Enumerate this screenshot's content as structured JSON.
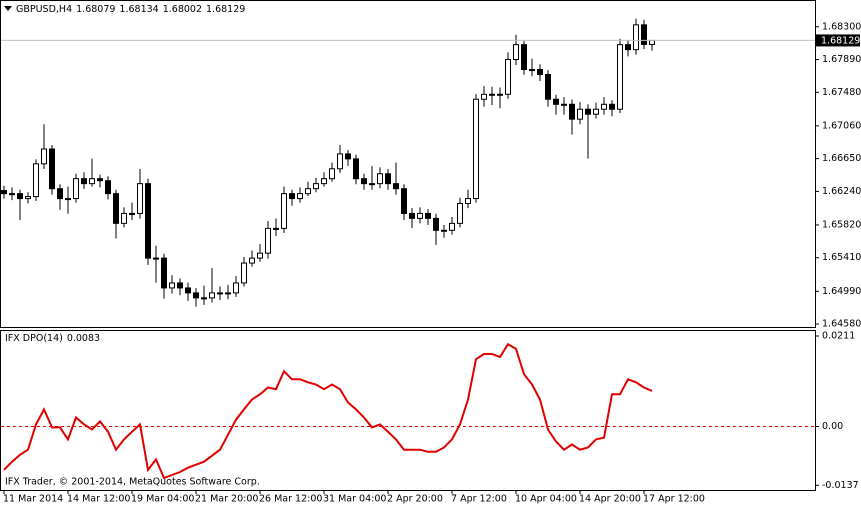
{
  "chart_data": [
    {
      "type": "candlestick",
      "title": "GBPUSD,H4",
      "color": "#000000",
      "bull_fill": "#ffffff",
      "ylim": [
        1.64543,
        1.68635
      ],
      "yticks": [
        {
          "value": 1.683,
          "label": "1.68300"
        },
        {
          "value": 1.6789,
          "label": "1.67890"
        },
        {
          "value": 1.6748,
          "label": "1.67480"
        },
        {
          "value": 1.6706,
          "label": "1.67060"
        },
        {
          "value": 1.6665,
          "label": "1.66650"
        },
        {
          "value": 1.6624,
          "label": "1.66240"
        },
        {
          "value": 1.6582,
          "label": "1.65820"
        },
        {
          "value": 1.6541,
          "label": "1.65410"
        },
        {
          "value": 1.6499,
          "label": "1.64990"
        },
        {
          "value": 1.6458,
          "label": "1.64580"
        }
      ],
      "last_price": 1.68129,
      "categories": [
        "11 Mar 2014",
        null,
        null,
        null,
        null,
        null,
        null,
        null,
        "14 Mar 12:00",
        null,
        null,
        null,
        null,
        null,
        null,
        null,
        "19 Mar 04:00",
        null,
        null,
        null,
        null,
        null,
        null,
        null,
        "21 Mar 20:00",
        null,
        null,
        null,
        null,
        null,
        null,
        null,
        "26 Mar 12:00",
        null,
        null,
        null,
        null,
        null,
        null,
        null,
        "31 Mar 04:00",
        null,
        null,
        null,
        null,
        null,
        null,
        null,
        "2 Apr 20:00",
        null,
        null,
        null,
        null,
        null,
        null,
        null,
        "7 Apr 12:00",
        null,
        null,
        null,
        null,
        null,
        null,
        null,
        "10 Apr 04:00",
        null,
        null,
        null,
        null,
        null,
        null,
        null,
        "14 Apr 20:00",
        null,
        null,
        null,
        null,
        null,
        null,
        null,
        "17 Apr 12:00",
        null
      ],
      "ohlc": [
        [
          1.6625,
          1.6631,
          1.6615,
          1.66212
        ],
        [
          1.66212,
          1.6629,
          1.6613,
          1.66212
        ],
        [
          1.66212,
          1.6626,
          1.6588,
          1.6615
        ],
        [
          1.6615,
          1.6623,
          1.6609,
          1.66175
        ],
        [
          1.66175,
          1.6664,
          1.6612,
          1.66585
        ],
        [
          1.66585,
          1.6708,
          1.6652,
          1.66771
        ],
        [
          1.66771,
          1.6682,
          1.662,
          1.66274
        ],
        [
          1.66274,
          1.6633,
          1.6601,
          1.6615
        ],
        [
          1.6615,
          1.663,
          1.6596,
          1.6615
        ],
        [
          1.6615,
          1.6646,
          1.661,
          1.66399
        ],
        [
          1.66399,
          1.6648,
          1.6627,
          1.66337
        ],
        [
          1.66337,
          1.6665,
          1.663,
          1.66399
        ],
        [
          1.66399,
          1.6645,
          1.6629,
          1.66374
        ],
        [
          1.66374,
          1.6643,
          1.6614,
          1.66212
        ],
        [
          1.66212,
          1.6626,
          1.6565,
          1.6584
        ],
        [
          1.6584,
          1.6604,
          1.6579,
          1.65964
        ],
        [
          1.65964,
          1.661,
          1.6588,
          1.65964
        ],
        [
          1.65964,
          1.6652,
          1.659,
          1.66337
        ],
        [
          1.66337,
          1.664,
          1.6532,
          1.65405
        ],
        [
          1.65405,
          1.6556,
          1.651,
          1.65405
        ],
        [
          1.65405,
          1.6546,
          1.649,
          1.65032
        ],
        [
          1.65032,
          1.6519,
          1.6496,
          1.65094
        ],
        [
          1.65094,
          1.6515,
          1.6494,
          1.65032
        ],
        [
          1.65032,
          1.651,
          1.6487,
          1.6497
        ],
        [
          1.6497,
          1.6503,
          1.648,
          1.64908
        ],
        [
          1.64908,
          1.6506,
          1.6482,
          1.64908
        ],
        [
          1.64908,
          1.6528,
          1.6485,
          1.6497
        ],
        [
          1.6497,
          1.6505,
          1.6488,
          1.6497
        ],
        [
          1.6497,
          1.6507,
          1.6489,
          1.6497
        ],
        [
          1.6497,
          1.6518,
          1.6492,
          1.65094
        ],
        [
          1.65094,
          1.6542,
          1.6505,
          1.65343
        ],
        [
          1.65343,
          1.655,
          1.653,
          1.65405
        ],
        [
          1.65405,
          1.6558,
          1.6536,
          1.65467
        ],
        [
          1.65467,
          1.6587,
          1.654,
          1.65777
        ],
        [
          1.65777,
          1.659,
          1.6568,
          1.65777
        ],
        [
          1.65777,
          1.663,
          1.6572,
          1.66212
        ],
        [
          1.66212,
          1.6626,
          1.6606,
          1.6615
        ],
        [
          1.6615,
          1.6629,
          1.661,
          1.66212
        ],
        [
          1.66212,
          1.6636,
          1.6618,
          1.66274
        ],
        [
          1.66274,
          1.6641,
          1.6623,
          1.66337
        ],
        [
          1.66337,
          1.6648,
          1.663,
          1.66399
        ],
        [
          1.66399,
          1.666,
          1.6636,
          1.66523
        ],
        [
          1.66523,
          1.6682,
          1.6647,
          1.66709
        ],
        [
          1.66709,
          1.6676,
          1.6656,
          1.66647
        ],
        [
          1.66647,
          1.667,
          1.6633,
          1.66399
        ],
        [
          1.66399,
          1.6646,
          1.6626,
          1.66337
        ],
        [
          1.66337,
          1.6656,
          1.6626,
          1.66337
        ],
        [
          1.66337,
          1.6654,
          1.6628,
          1.66461
        ],
        [
          1.66461,
          1.6652,
          1.6626,
          1.66337
        ],
        [
          1.66337,
          1.666,
          1.662,
          1.66274
        ],
        [
          1.66274,
          1.6633,
          1.6588,
          1.65964
        ],
        [
          1.65964,
          1.6603,
          1.6578,
          1.65902
        ],
        [
          1.65902,
          1.6604,
          1.6584,
          1.65964
        ],
        [
          1.65964,
          1.6602,
          1.6582,
          1.65902
        ],
        [
          1.65902,
          1.6596,
          1.6557,
          1.65753
        ],
        [
          1.65753,
          1.6582,
          1.6566,
          1.65753
        ],
        [
          1.65753,
          1.6592,
          1.657,
          1.6584
        ],
        [
          1.6584,
          1.6616,
          1.6579,
          1.66088
        ],
        [
          1.66088,
          1.6626,
          1.6603,
          1.6615
        ],
        [
          1.6615,
          1.6746,
          1.661,
          1.67393
        ],
        [
          1.67393,
          1.6756,
          1.673,
          1.67455
        ],
        [
          1.67455,
          1.6755,
          1.6732,
          1.67455
        ],
        [
          1.67455,
          1.6754,
          1.6728,
          1.67455
        ],
        [
          1.67455,
          1.6798,
          1.674,
          1.6789
        ],
        [
          1.6789,
          1.682,
          1.6782,
          1.68076
        ],
        [
          1.68076,
          1.6812,
          1.677,
          1.67765
        ],
        [
          1.67765,
          1.679,
          1.6768,
          1.67765
        ],
        [
          1.67765,
          1.6783,
          1.6762,
          1.67703
        ],
        [
          1.67703,
          1.6776,
          1.673,
          1.67393
        ],
        [
          1.67393,
          1.6745,
          1.672,
          1.6733
        ],
        [
          1.6733,
          1.6742,
          1.672,
          1.6733
        ],
        [
          1.6733,
          1.6739,
          1.6695,
          1.67144
        ],
        [
          1.67144,
          1.6736,
          1.6708,
          1.67268
        ],
        [
          1.67268,
          1.6733,
          1.6665,
          1.67206
        ],
        [
          1.67206,
          1.6735,
          1.6715,
          1.67268
        ],
        [
          1.67268,
          1.6742,
          1.672,
          1.6733
        ],
        [
          1.6733,
          1.6738,
          1.6718,
          1.67268
        ],
        [
          1.67268,
          1.6815,
          1.6722,
          1.68076
        ],
        [
          1.68076,
          1.6813,
          1.6793,
          1.68014
        ],
        [
          1.68014,
          1.684,
          1.6795,
          1.68324
        ],
        [
          1.68324,
          1.6839,
          1.6802,
          1.68079
        ],
        [
          1.68079,
          1.68134,
          1.68002,
          1.68129
        ]
      ]
    },
    {
      "type": "line",
      "title": "IFX DPO(14)",
      "color": "#e00000",
      "zero_line": true,
      "ylim": [
        -0.0148,
        0.0225
      ],
      "yticks": [
        0.0211,
        {
          "value": 0,
          "label": "0.00"
        },
        -0.0137
      ],
      "values": [
        -0.0101,
        -0.0082,
        -0.0066,
        -0.0054,
        0.0005,
        0.004,
        -0.0002,
        -0.0002,
        -0.003,
        0.0021,
        0.0005,
        -0.0007,
        0.0012,
        -0.0012,
        -0.0054,
        -0.003,
        -0.0012,
        0.0005,
        -0.0101,
        -0.0077,
        -0.012,
        -0.0113,
        -0.0106,
        -0.0096,
        -0.0089,
        -0.0082,
        -0.0068,
        -0.0054,
        -0.0019,
        0.0016,
        0.004,
        0.0063,
        0.0075,
        0.0091,
        0.0087,
        0.0129,
        0.011,
        0.011,
        0.0103,
        0.0098,
        0.0087,
        0.0098,
        0.0087,
        0.0056,
        0.004,
        0.0021,
        -0.0002,
        0.0005,
        -0.0012,
        -0.003,
        -0.0054,
        -0.0054,
        -0.0054,
        -0.0059,
        -0.0059,
        -0.0049,
        -0.003,
        0.0005,
        0.0063,
        0.0157,
        0.0169,
        0.0169,
        0.0162,
        0.0192,
        0.0181,
        0.0122,
        0.0098,
        0.0063,
        -0.0007,
        -0.0035,
        -0.0054,
        -0.0042,
        -0.0054,
        -0.0049,
        -0.003,
        -0.0026,
        0.0075,
        0.0075,
        0.011,
        0.0103,
        0.0091,
        0.0083
      ],
      "footer": "IFX Trader, © 2001-2014, MetaQuotes Software Corp."
    }
  ]
}
